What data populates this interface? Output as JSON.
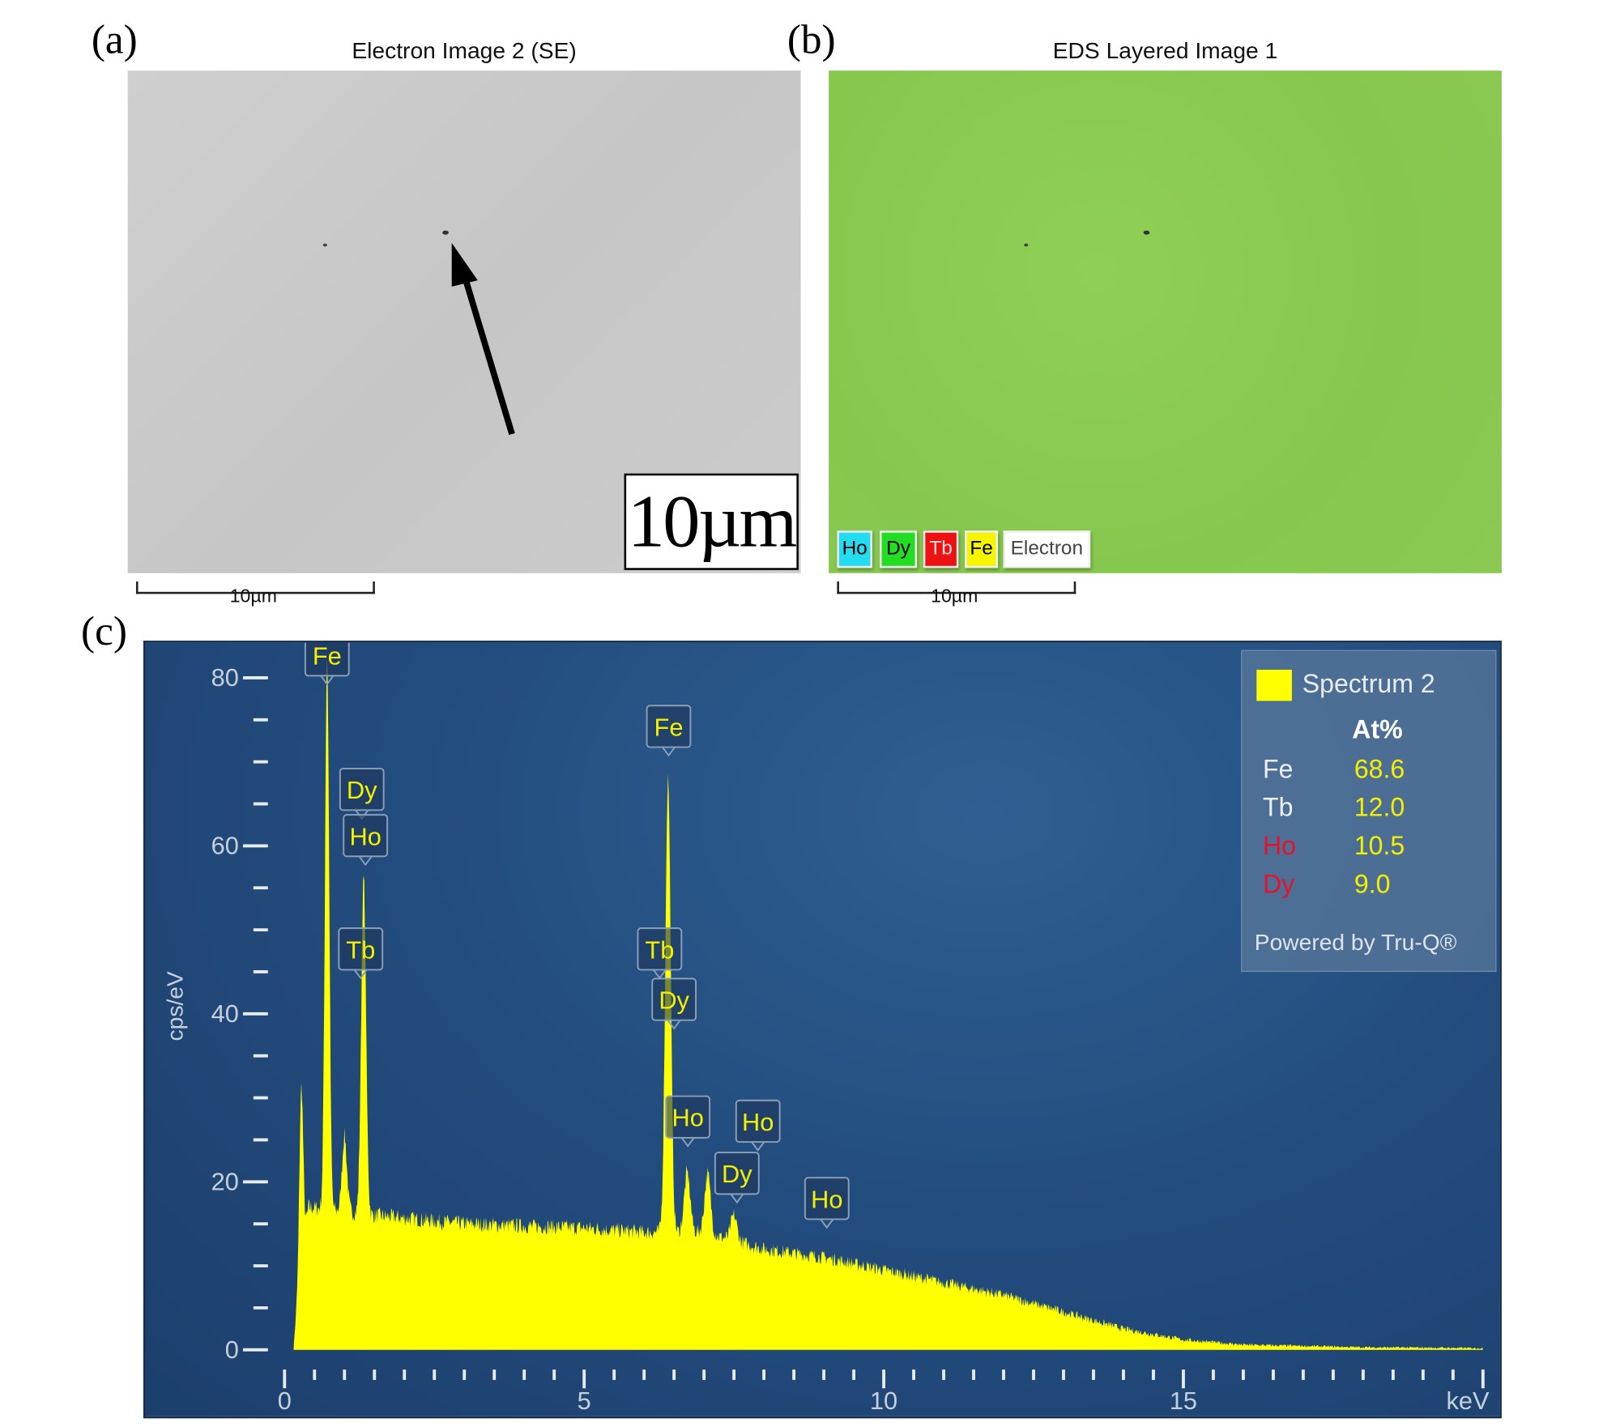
{
  "panels": {
    "a": {
      "label": "(a)",
      "title": "Electron Image 2 (SE)",
      "scale_label": "10µm",
      "inset_scale": "10µm"
    },
    "b": {
      "label": "(b)",
      "title": "EDS Layered Image 1",
      "scale_label": "10µm",
      "layers": [
        {
          "name": "Ho",
          "color": "#22dcef"
        },
        {
          "name": "Dy",
          "color": "#22dd22"
        },
        {
          "name": "Tb",
          "color": "#ee1111"
        },
        {
          "name": "Fe",
          "color": "#f5f500"
        },
        {
          "name": "Electron",
          "color": "#ffffff"
        }
      ]
    },
    "c": {
      "label": "(c)"
    }
  },
  "colors": {
    "spectrum": "#ffff00",
    "label_text": "#f5f000",
    "red_element": "#e8102a"
  },
  "chart_data": {
    "type": "area",
    "xlabel": "keV",
    "ylabel": "cps/eV",
    "xlim": [
      0,
      20
    ],
    "ylim": [
      0,
      80
    ],
    "xticks": [
      0,
      5,
      10,
      15
    ],
    "yticks": [
      0,
      20,
      40,
      60,
      80
    ],
    "grid": false,
    "legend": {
      "position": "top-right",
      "series": "Spectrum 2",
      "header": "At%",
      "rows": [
        {
          "el": "Fe",
          "val": "68.6",
          "red": false
        },
        {
          "el": "Tb",
          "val": "12.0",
          "red": false
        },
        {
          "el": "Ho",
          "val": "10.5",
          "red": true
        },
        {
          "el": "Dy",
          "val": "9.0",
          "red": true
        }
      ],
      "footer": "Powered by Tru-Q®"
    },
    "background": [
      [
        0.15,
        0
      ],
      [
        0.25,
        10
      ],
      [
        0.4,
        17
      ],
      [
        1.5,
        16
      ],
      [
        3,
        15
      ],
      [
        5,
        14.5
      ],
      [
        6,
        14
      ],
      [
        7,
        14
      ],
      [
        7.5,
        13
      ],
      [
        8,
        12
      ],
      [
        9,
        11
      ],
      [
        10,
        9.5
      ],
      [
        11,
        8
      ],
      [
        12,
        6.5
      ],
      [
        13,
        4.5
      ],
      [
        14,
        2.5
      ],
      [
        15,
        1.2
      ],
      [
        16,
        0.6
      ],
      [
        18,
        0.3
      ],
      [
        20,
        0.2
      ]
    ],
    "peaks": [
      [
        0.28,
        20,
        0.03
      ],
      [
        0.71,
        66,
        0.035
      ],
      [
        1.0,
        9,
        0.04
      ],
      [
        1.32,
        40,
        0.04
      ],
      [
        6.4,
        54,
        0.045
      ],
      [
        6.72,
        7,
        0.05
      ],
      [
        7.06,
        7,
        0.05
      ],
      [
        7.5,
        3,
        0.05
      ]
    ],
    "peak_labels": [
      {
        "text": "Fe",
        "keV": 0.71,
        "y": 80
      },
      {
        "text": "Dy",
        "keV": 1.29,
        "y": 64
      },
      {
        "text": "Ho",
        "keV": 1.35,
        "y": 58.5
      },
      {
        "text": "Tb",
        "keV": 1.27,
        "y": 45
      },
      {
        "text": "Fe",
        "keV": 6.41,
        "y": 71.5
      },
      {
        "text": "Tb",
        "keV": 6.26,
        "y": 45
      },
      {
        "text": "Dy",
        "keV": 6.5,
        "y": 39
      },
      {
        "text": "Ho",
        "keV": 6.73,
        "y": 25
      },
      {
        "text": "Ho",
        "keV": 7.9,
        "y": 24.5
      },
      {
        "text": "Dy",
        "keV": 7.55,
        "y": 18.3
      },
      {
        "text": "Ho",
        "keV": 9.05,
        "y": 15.3
      }
    ]
  }
}
